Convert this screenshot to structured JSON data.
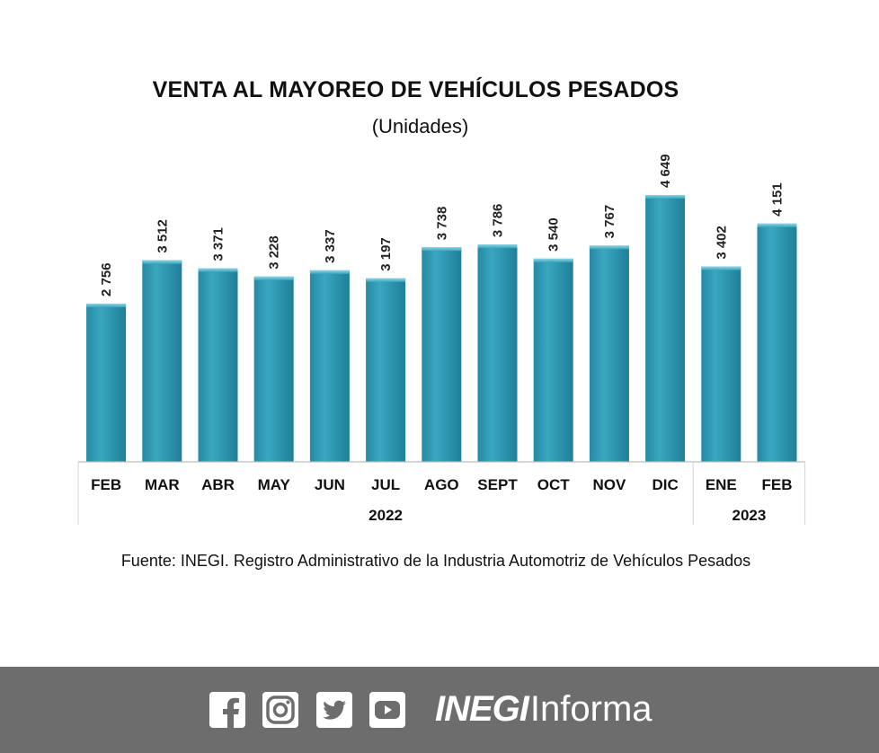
{
  "chart_data": {
    "type": "bar",
    "title": "VENTA AL MAYOREO DE VEHÍCULOS PESADOS",
    "subtitle": "(Unidades)",
    "categories": [
      "FEB",
      "MAR",
      "ABR",
      "MAY",
      "JUN",
      "JUL",
      "AGO",
      "SEPT",
      "OCT",
      "NOV",
      "DIC",
      "ENE",
      "FEB"
    ],
    "values": [
      2756,
      3512,
      3371,
      3228,
      3337,
      3197,
      3738,
      3786,
      3540,
      3767,
      4649,
      3402,
      4151
    ],
    "value_labels": [
      "2 756",
      "3 512",
      "3 371",
      "3 228",
      "3 337",
      "3 197",
      "3 738",
      "3 786",
      "3 540",
      "3 767",
      "4 649",
      "3 402",
      "4 151"
    ],
    "year_groups": [
      {
        "label": "2022",
        "count": 11
      },
      {
        "label": "2023",
        "count": 2
      }
    ],
    "ylim": [
      0,
      4649
    ],
    "grid": false,
    "bar_color": "#2f9bb5",
    "xlabel": "",
    "ylabel": ""
  },
  "source": "Fuente: INEGI. Registro Administrativo de la Industria Automotriz de Vehículos Pesados",
  "footer": {
    "icons": [
      "facebook-icon",
      "instagram-icon",
      "twitter-icon",
      "youtube-icon"
    ],
    "brand_part1": "INEGI",
    "brand_part2": "Informa",
    "background": "#6d6d6d"
  }
}
